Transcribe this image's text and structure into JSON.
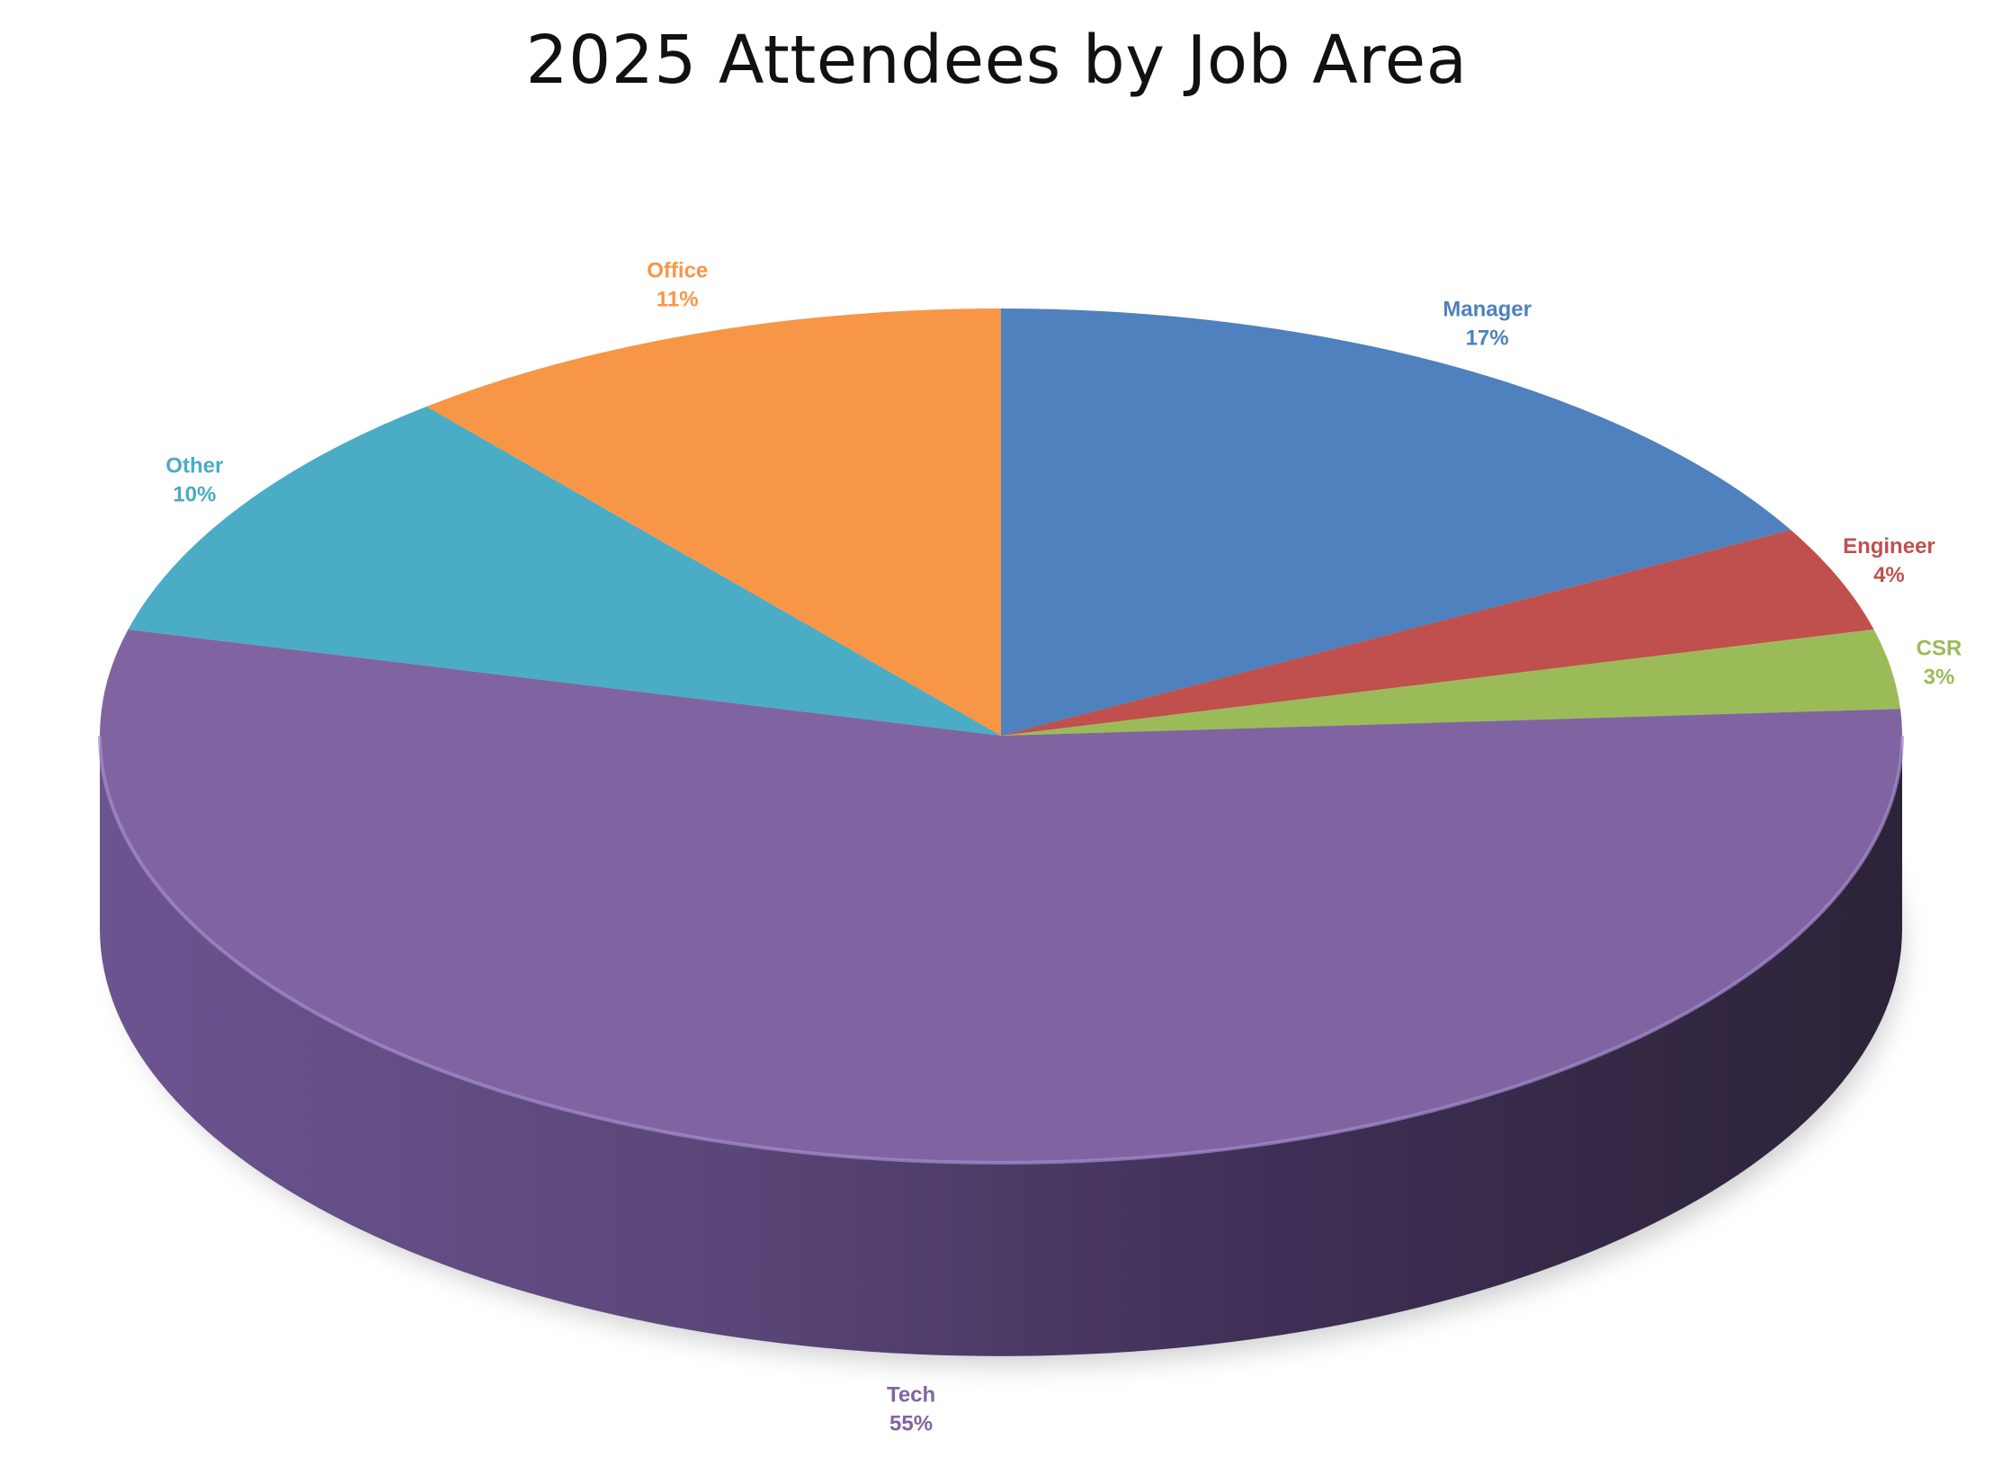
{
  "chart_data": {
    "type": "pie",
    "title": "2025 Attendees by Job Area",
    "style": "3d",
    "slices": [
      {
        "label": "Manager",
        "value": 17,
        "value_label": "17%",
        "color": "#4E81BD"
      },
      {
        "label": "Engineer",
        "value": 4,
        "value_label": "4%",
        "color": "#C0504D"
      },
      {
        "label": "CSR",
        "value": 3,
        "value_label": "3%",
        "color": "#9BBB59"
      },
      {
        "label": "Tech",
        "value": 55,
        "value_label": "55%",
        "color": "#8064A2"
      },
      {
        "label": "Other",
        "value": 10,
        "value_label": "10%",
        "color": "#4BACC6"
      },
      {
        "label": "Office",
        "value": 11,
        "value_label": "11%",
        "color": "#F79646"
      }
    ]
  }
}
